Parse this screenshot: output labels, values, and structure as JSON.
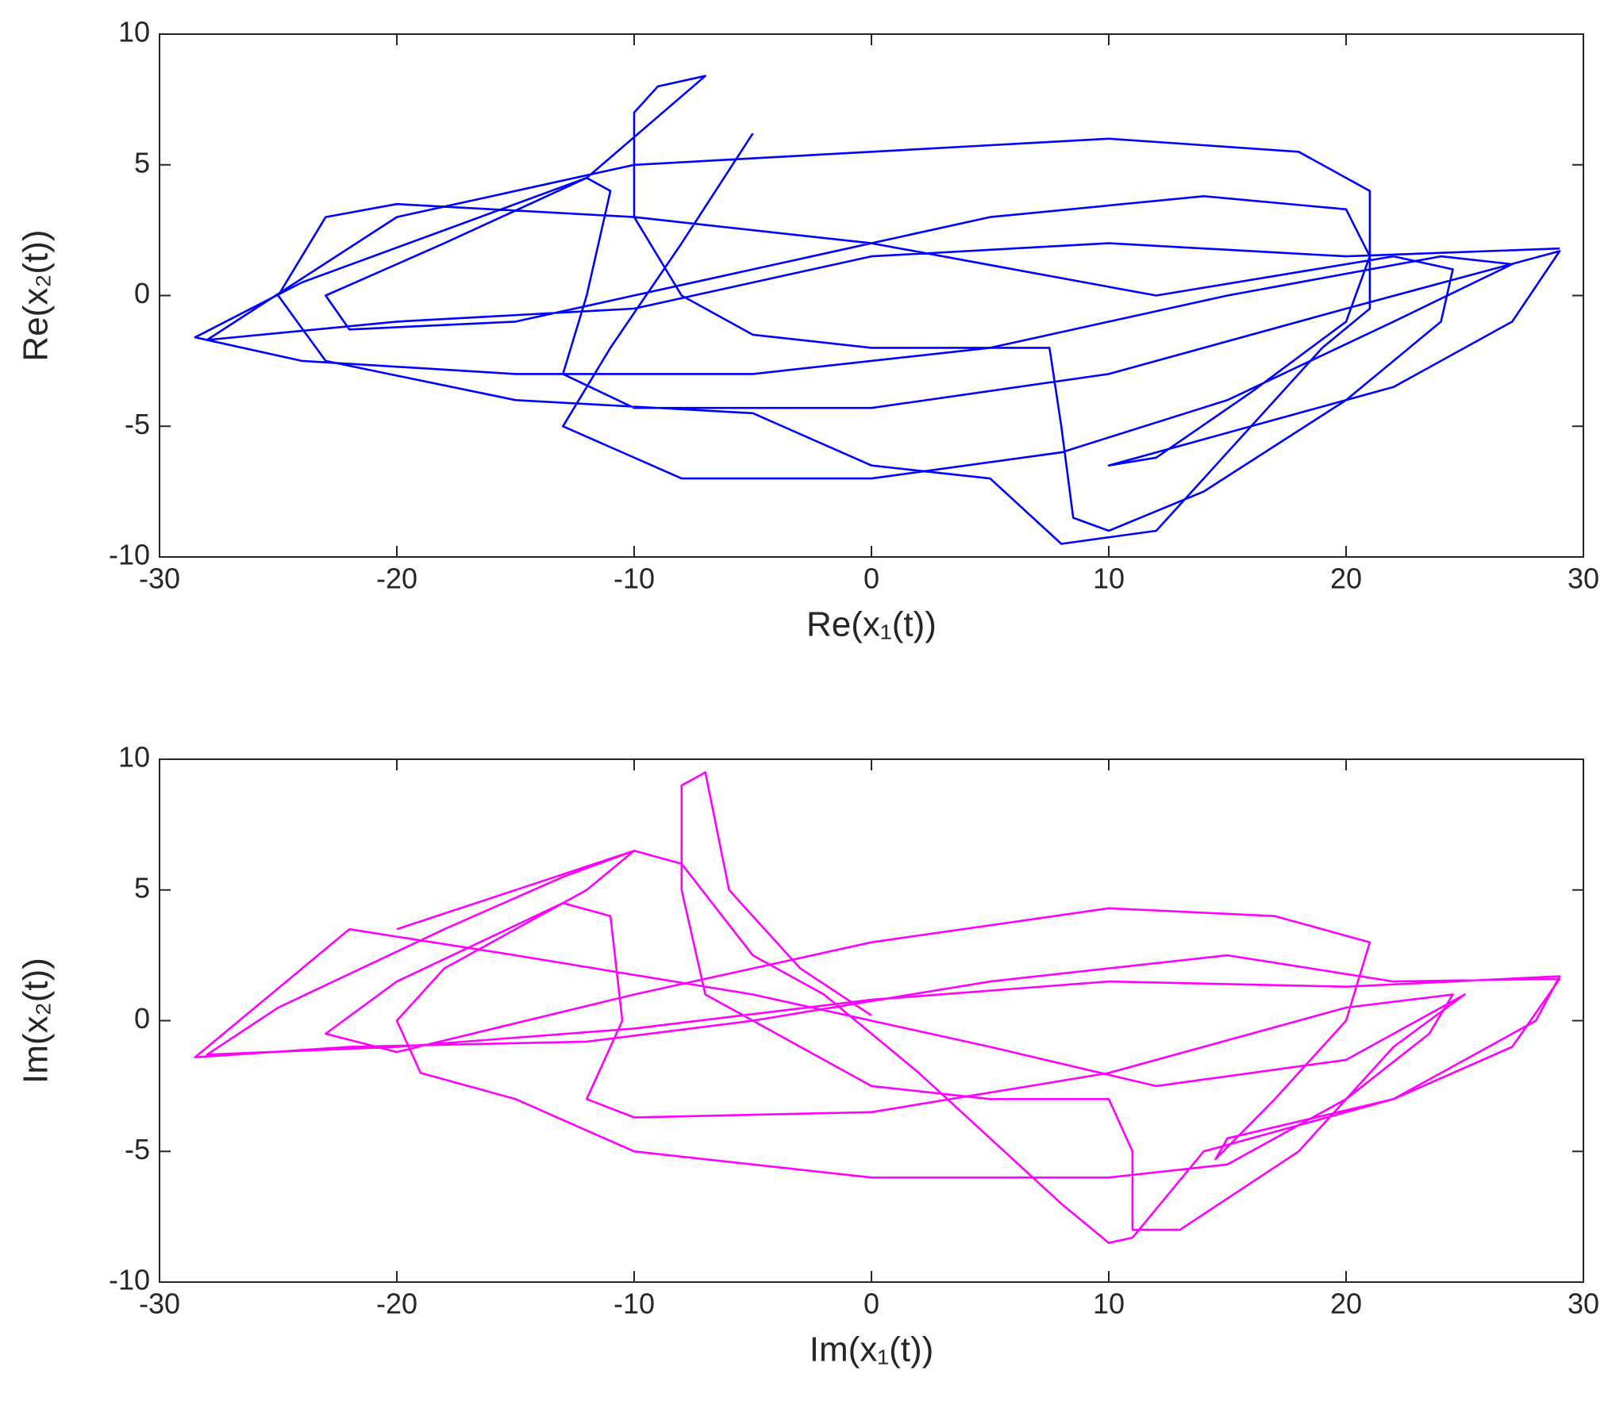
{
  "chart_data": [
    {
      "type": "line",
      "x_label": "Re(x₁(t))",
      "y_label": "Re(x₂(t))",
      "color": "#0000ff",
      "xlim": [
        -30,
        30
      ],
      "xticks": [
        -30,
        -20,
        -10,
        0,
        10,
        20,
        30
      ],
      "ylim": [
        -10,
        10
      ],
      "yticks": [
        -10,
        -5,
        0,
        5,
        10
      ],
      "x": [
        -5,
        -8,
        -11,
        -13,
        -8,
        0,
        8,
        15,
        22,
        27,
        24,
        15,
        5,
        -5,
        -15,
        -24,
        -28.5,
        -24,
        -18,
        -12,
        -11,
        -12,
        -13,
        -10,
        0,
        10,
        20,
        29,
        27,
        22,
        14,
        10,
        12,
        16,
        20,
        21,
        20,
        14,
        5,
        -5,
        -15,
        -22,
        -23,
        -18,
        -12,
        -7,
        -9,
        -10,
        -10,
        -8,
        -5,
        0,
        5,
        7.5,
        8,
        8.5,
        10,
        14,
        20,
        24,
        24.5,
        22,
        12,
        0,
        -10,
        -20,
        -23,
        -25,
        -23,
        -15,
        -5,
        0,
        5,
        8,
        12,
        16,
        19,
        21,
        21,
        18,
        10,
        0,
        -10,
        -20,
        -28,
        -20,
        -10,
        0,
        10,
        20,
        29
      ],
      "values": [
        6.2,
        2,
        -2,
        -5,
        -7,
        -7,
        -6,
        -4,
        -1,
        1.2,
        1.5,
        0,
        -2,
        -3,
        -3,
        -2.5,
        -1.6,
        0.5,
        2.5,
        4.5,
        4,
        0,
        -3,
        -4.3,
        -4.3,
        -3,
        -0.5,
        1.7,
        -1,
        -3.5,
        -5.5,
        -6.5,
        -6.2,
        -3.7,
        -1,
        1.5,
        3.3,
        3.8,
        3,
        1,
        -1,
        -1.3,
        0,
        2,
        4.5,
        8.4,
        8,
        7,
        3,
        0,
        -1.5,
        -2,
        -2,
        -2,
        -5,
        -8.5,
        -9,
        -7.5,
        -4,
        -1,
        1,
        1.5,
        0,
        2,
        3,
        3.5,
        3,
        0,
        -2.5,
        -4,
        -4.5,
        -6.5,
        -7,
        -9.5,
        -9,
        -5,
        -2,
        -0.5,
        4,
        5.5,
        6,
        5.5,
        5,
        3,
        -1.7,
        -1,
        -0.5,
        1.5,
        2,
        1.5,
        1.8
      ]
    },
    {
      "type": "line",
      "x_label": "Im(x₁(t))",
      "y_label": "Im(x₂(t))",
      "color": "#ff00ff",
      "xlim": [
        -30,
        30
      ],
      "xticks": [
        -30,
        -20,
        -10,
        0,
        10,
        20,
        30
      ],
      "ylim": [
        -10,
        10
      ],
      "yticks": [
        -10,
        -5,
        0,
        5,
        10
      ],
      "x": [
        0,
        -3,
        -6,
        -7,
        -8,
        -8,
        -7,
        -3,
        0,
        5,
        10,
        11,
        11,
        13,
        18,
        22,
        25,
        24,
        20,
        12,
        5,
        -5,
        -15,
        -22,
        -28.5,
        -22,
        -12,
        -5,
        5,
        15,
        22,
        29,
        27,
        22,
        15,
        14.5,
        17,
        20,
        21,
        17,
        10,
        0,
        -10,
        -20,
        -23,
        -20,
        -13,
        -11,
        -10.5,
        -12,
        -10,
        0,
        10,
        20,
        24.5,
        23.5,
        20,
        15,
        10,
        0,
        -10,
        -15,
        -19,
        -20,
        -18,
        -12,
        -10,
        -13,
        -18,
        -25,
        -28,
        -20,
        -10,
        0,
        10,
        20,
        29,
        28,
        22,
        14,
        11,
        10,
        8,
        5,
        2,
        -2,
        -5,
        -8,
        -10,
        -15,
        -20
      ],
      "values": [
        0.2,
        2,
        5,
        9.5,
        9,
        5,
        1,
        -1,
        -2.5,
        -3,
        -3,
        -5,
        -8,
        -8,
        -5,
        -1,
        1,
        0.5,
        -1.5,
        -2.5,
        -1,
        1,
        2.5,
        3.5,
        -1.4,
        -1,
        -0.8,
        0,
        1.5,
        2.5,
        1.5,
        1.6,
        -1,
        -3,
        -4.5,
        -5.3,
        -3,
        0,
        3,
        4,
        4.3,
        3,
        1,
        -1.2,
        -0.5,
        1.5,
        4.5,
        4,
        0,
        -3,
        -3.7,
        -3.5,
        -2,
        0.5,
        1,
        -0.5,
        -3,
        -5.5,
        -6,
        -6,
        -5,
        -3,
        -2,
        0,
        2,
        5,
        6.5,
        5.5,
        3.5,
        0.5,
        -1.3,
        -1,
        -0.3,
        0.8,
        1.5,
        1.3,
        1.7,
        0,
        -3,
        -5,
        -8.3,
        -8.5,
        -7,
        -4.5,
        -2,
        1,
        2.5,
        6,
        6.5,
        5,
        3.5
      ]
    }
  ]
}
